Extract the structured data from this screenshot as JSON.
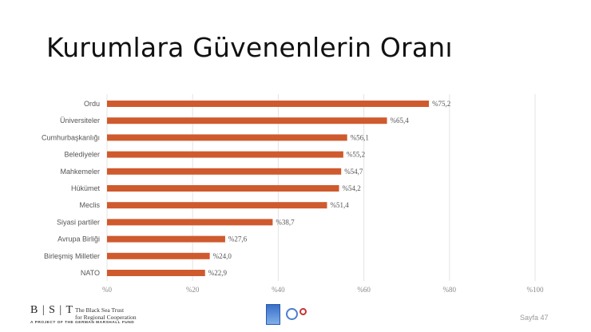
{
  "slide": {
    "title": "Kurumlara Güvenenlerin Oranı",
    "page_label": "Sayfa 47"
  },
  "footer": {
    "org_letters": "B | S | T",
    "org_name_line1": "The Black Sea Trust",
    "org_name_line2": "for Regional Cooperation",
    "project_line": "A PROJECT OF THE GERMAN MARSHALL FUND"
  },
  "colors": {
    "bar": "#cf5a2e",
    "gridline": "#e3e3e3"
  },
  "chart_data": {
    "type": "bar",
    "orientation": "horizontal",
    "categories": [
      "Ordu",
      "Üniversiteler",
      "Cumhurbaşkanlığı",
      "Belediyeler",
      "Mahkemeler",
      "Hükümet",
      "Meclis",
      "Siyasi partiler",
      "Avrupa Birliği",
      "Birleşmiş Milletler",
      "NATO"
    ],
    "values": [
      75.2,
      65.4,
      56.1,
      55.2,
      54.7,
      54.2,
      51.4,
      38.7,
      27.6,
      24.0,
      22.9
    ],
    "value_labels": [
      "%75,2",
      "%65,4",
      "%56,1",
      "%55,2",
      "%54,7",
      "%54,2",
      "%51,4",
      "%38,7",
      "%27,6",
      "%24,0",
      "%22,9"
    ],
    "xlim": [
      0,
      100
    ],
    "x_ticks": [
      0,
      20,
      40,
      60,
      80,
      100
    ],
    "x_tick_labels": [
      "%0",
      "%20",
      "%40",
      "%60",
      "%80",
      "%100"
    ],
    "grid": "vertical",
    "legend": "none"
  }
}
